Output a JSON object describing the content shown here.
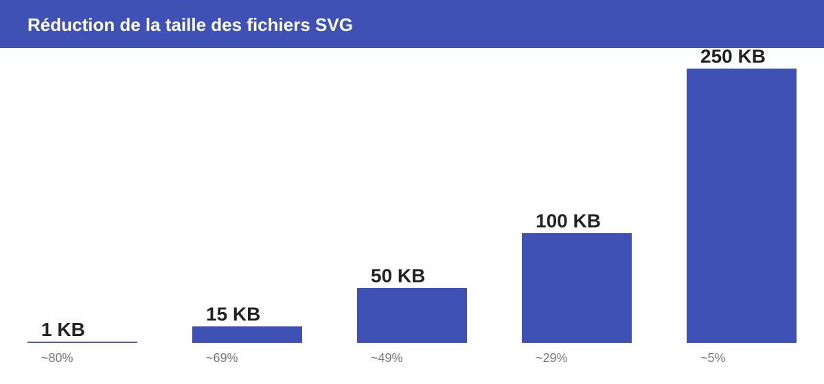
{
  "chart_data": {
    "type": "bar",
    "title": "Réduction de la taille des fichiers SVG",
    "categories": [
      "~80%",
      "~69%",
      "~49%",
      "~29%",
      "~5%"
    ],
    "values": [
      1,
      15,
      50,
      100,
      250
    ],
    "value_labels": [
      "1 KB",
      "15 KB",
      "50 KB",
      "100 KB",
      "250 KB"
    ],
    "color": "#3f51b5",
    "ylim": [
      0,
      250
    ]
  }
}
